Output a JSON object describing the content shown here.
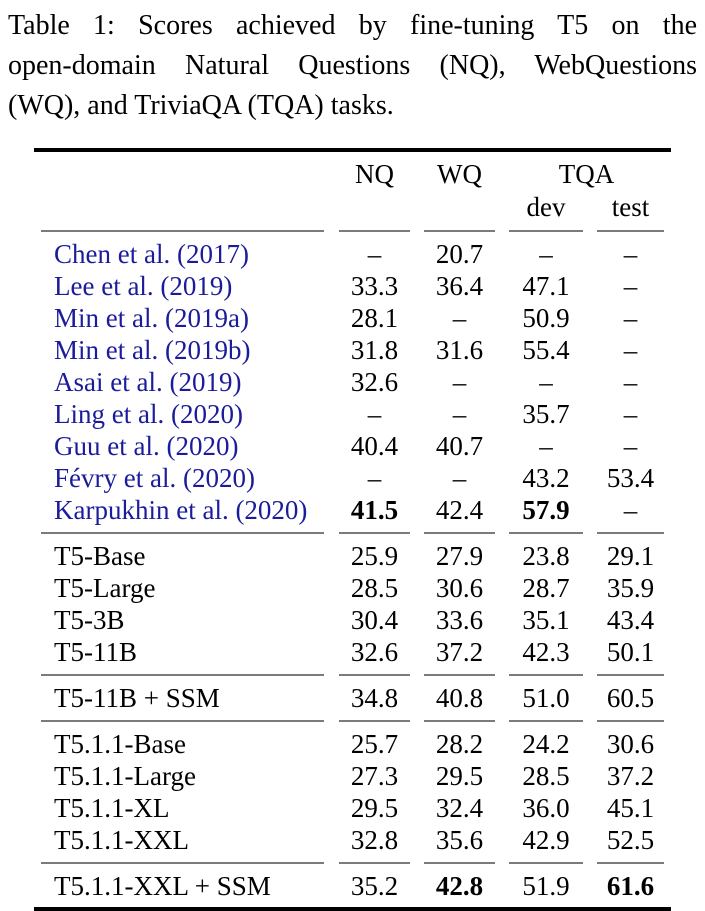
{
  "caption": {
    "lines": [
      "Table 1:  Scores achieved by fine-tuning T5 on the",
      "open-domain Natural Questions (NQ), WebQuestions",
      "(WQ), and TriviaQA (TQA) tasks."
    ]
  },
  "header": {
    "nq": "NQ",
    "wq": "WQ",
    "tqa": "TQA",
    "tqa_sub": {
      "dev": "dev",
      "test": "test"
    }
  },
  "groups": [
    {
      "name": "prior-work",
      "citation": true,
      "rows": [
        {
          "label": "Chen et al. (2017)",
          "values": [
            "–",
            "20.7",
            "–",
            "–"
          ],
          "bold": []
        },
        {
          "label": "Lee et al. (2019)",
          "values": [
            "33.3",
            "36.4",
            "47.1",
            "–"
          ],
          "bold": []
        },
        {
          "label": "Min et al. (2019a)",
          "values": [
            "28.1",
            "–",
            "50.9",
            "–"
          ],
          "bold": []
        },
        {
          "label": "Min et al. (2019b)",
          "values": [
            "31.8",
            "31.6",
            "55.4",
            "–"
          ],
          "bold": []
        },
        {
          "label": "Asai et al. (2019)",
          "values": [
            "32.6",
            "–",
            "–",
            "–"
          ],
          "bold": []
        },
        {
          "label": "Ling et al. (2020)",
          "values": [
            "–",
            "–",
            "35.7",
            "–"
          ],
          "bold": []
        },
        {
          "label": "Guu et al. (2020)",
          "values": [
            "40.4",
            "40.7",
            "–",
            "–"
          ],
          "bold": []
        },
        {
          "label": "Févry et al. (2020)",
          "values": [
            "–",
            "–",
            "43.2",
            "53.4"
          ],
          "bold": []
        },
        {
          "label": "Karpukhin et al. (2020)",
          "values": [
            "41.5",
            "42.4",
            "57.9",
            "–"
          ],
          "bold": [
            0,
            2
          ]
        }
      ]
    },
    {
      "name": "t5",
      "citation": false,
      "rows": [
        {
          "label": "T5-Base",
          "values": [
            "25.9",
            "27.9",
            "23.8",
            "29.1"
          ],
          "bold": []
        },
        {
          "label": "T5-Large",
          "values": [
            "28.5",
            "30.6",
            "28.7",
            "35.9"
          ],
          "bold": []
        },
        {
          "label": "T5-3B",
          "values": [
            "30.4",
            "33.6",
            "35.1",
            "43.4"
          ],
          "bold": []
        },
        {
          "label": "T5-11B",
          "values": [
            "32.6",
            "37.2",
            "42.3",
            "50.1"
          ],
          "bold": []
        }
      ]
    },
    {
      "name": "t5-ssm",
      "citation": false,
      "rows": [
        {
          "label": "T5-11B + SSM",
          "values": [
            "34.8",
            "40.8",
            "51.0",
            "60.5"
          ],
          "bold": []
        }
      ]
    },
    {
      "name": "t5-1-1",
      "citation": false,
      "rows": [
        {
          "label": "T5.1.1-Base",
          "values": [
            "25.7",
            "28.2",
            "24.2",
            "30.6"
          ],
          "bold": []
        },
        {
          "label": "T5.1.1-Large",
          "values": [
            "27.3",
            "29.5",
            "28.5",
            "37.2"
          ],
          "bold": []
        },
        {
          "label": "T5.1.1-XL",
          "values": [
            "29.5",
            "32.4",
            "36.0",
            "45.1"
          ],
          "bold": []
        },
        {
          "label": "T5.1.1-XXL",
          "values": [
            "32.8",
            "35.6",
            "42.9",
            "52.5"
          ],
          "bold": []
        }
      ]
    },
    {
      "name": "t5-1-1-ssm",
      "citation": false,
      "rows": [
        {
          "label": "T5.1.1-XXL + SSM",
          "values": [
            "35.2",
            "42.8",
            "51.9",
            "61.6"
          ],
          "bold": [
            1,
            3
          ]
        }
      ]
    }
  ],
  "colors": {
    "citation_blue": "#1b1b9b",
    "rule_black": "#000000",
    "rule_gray": "#7b7b7b"
  }
}
